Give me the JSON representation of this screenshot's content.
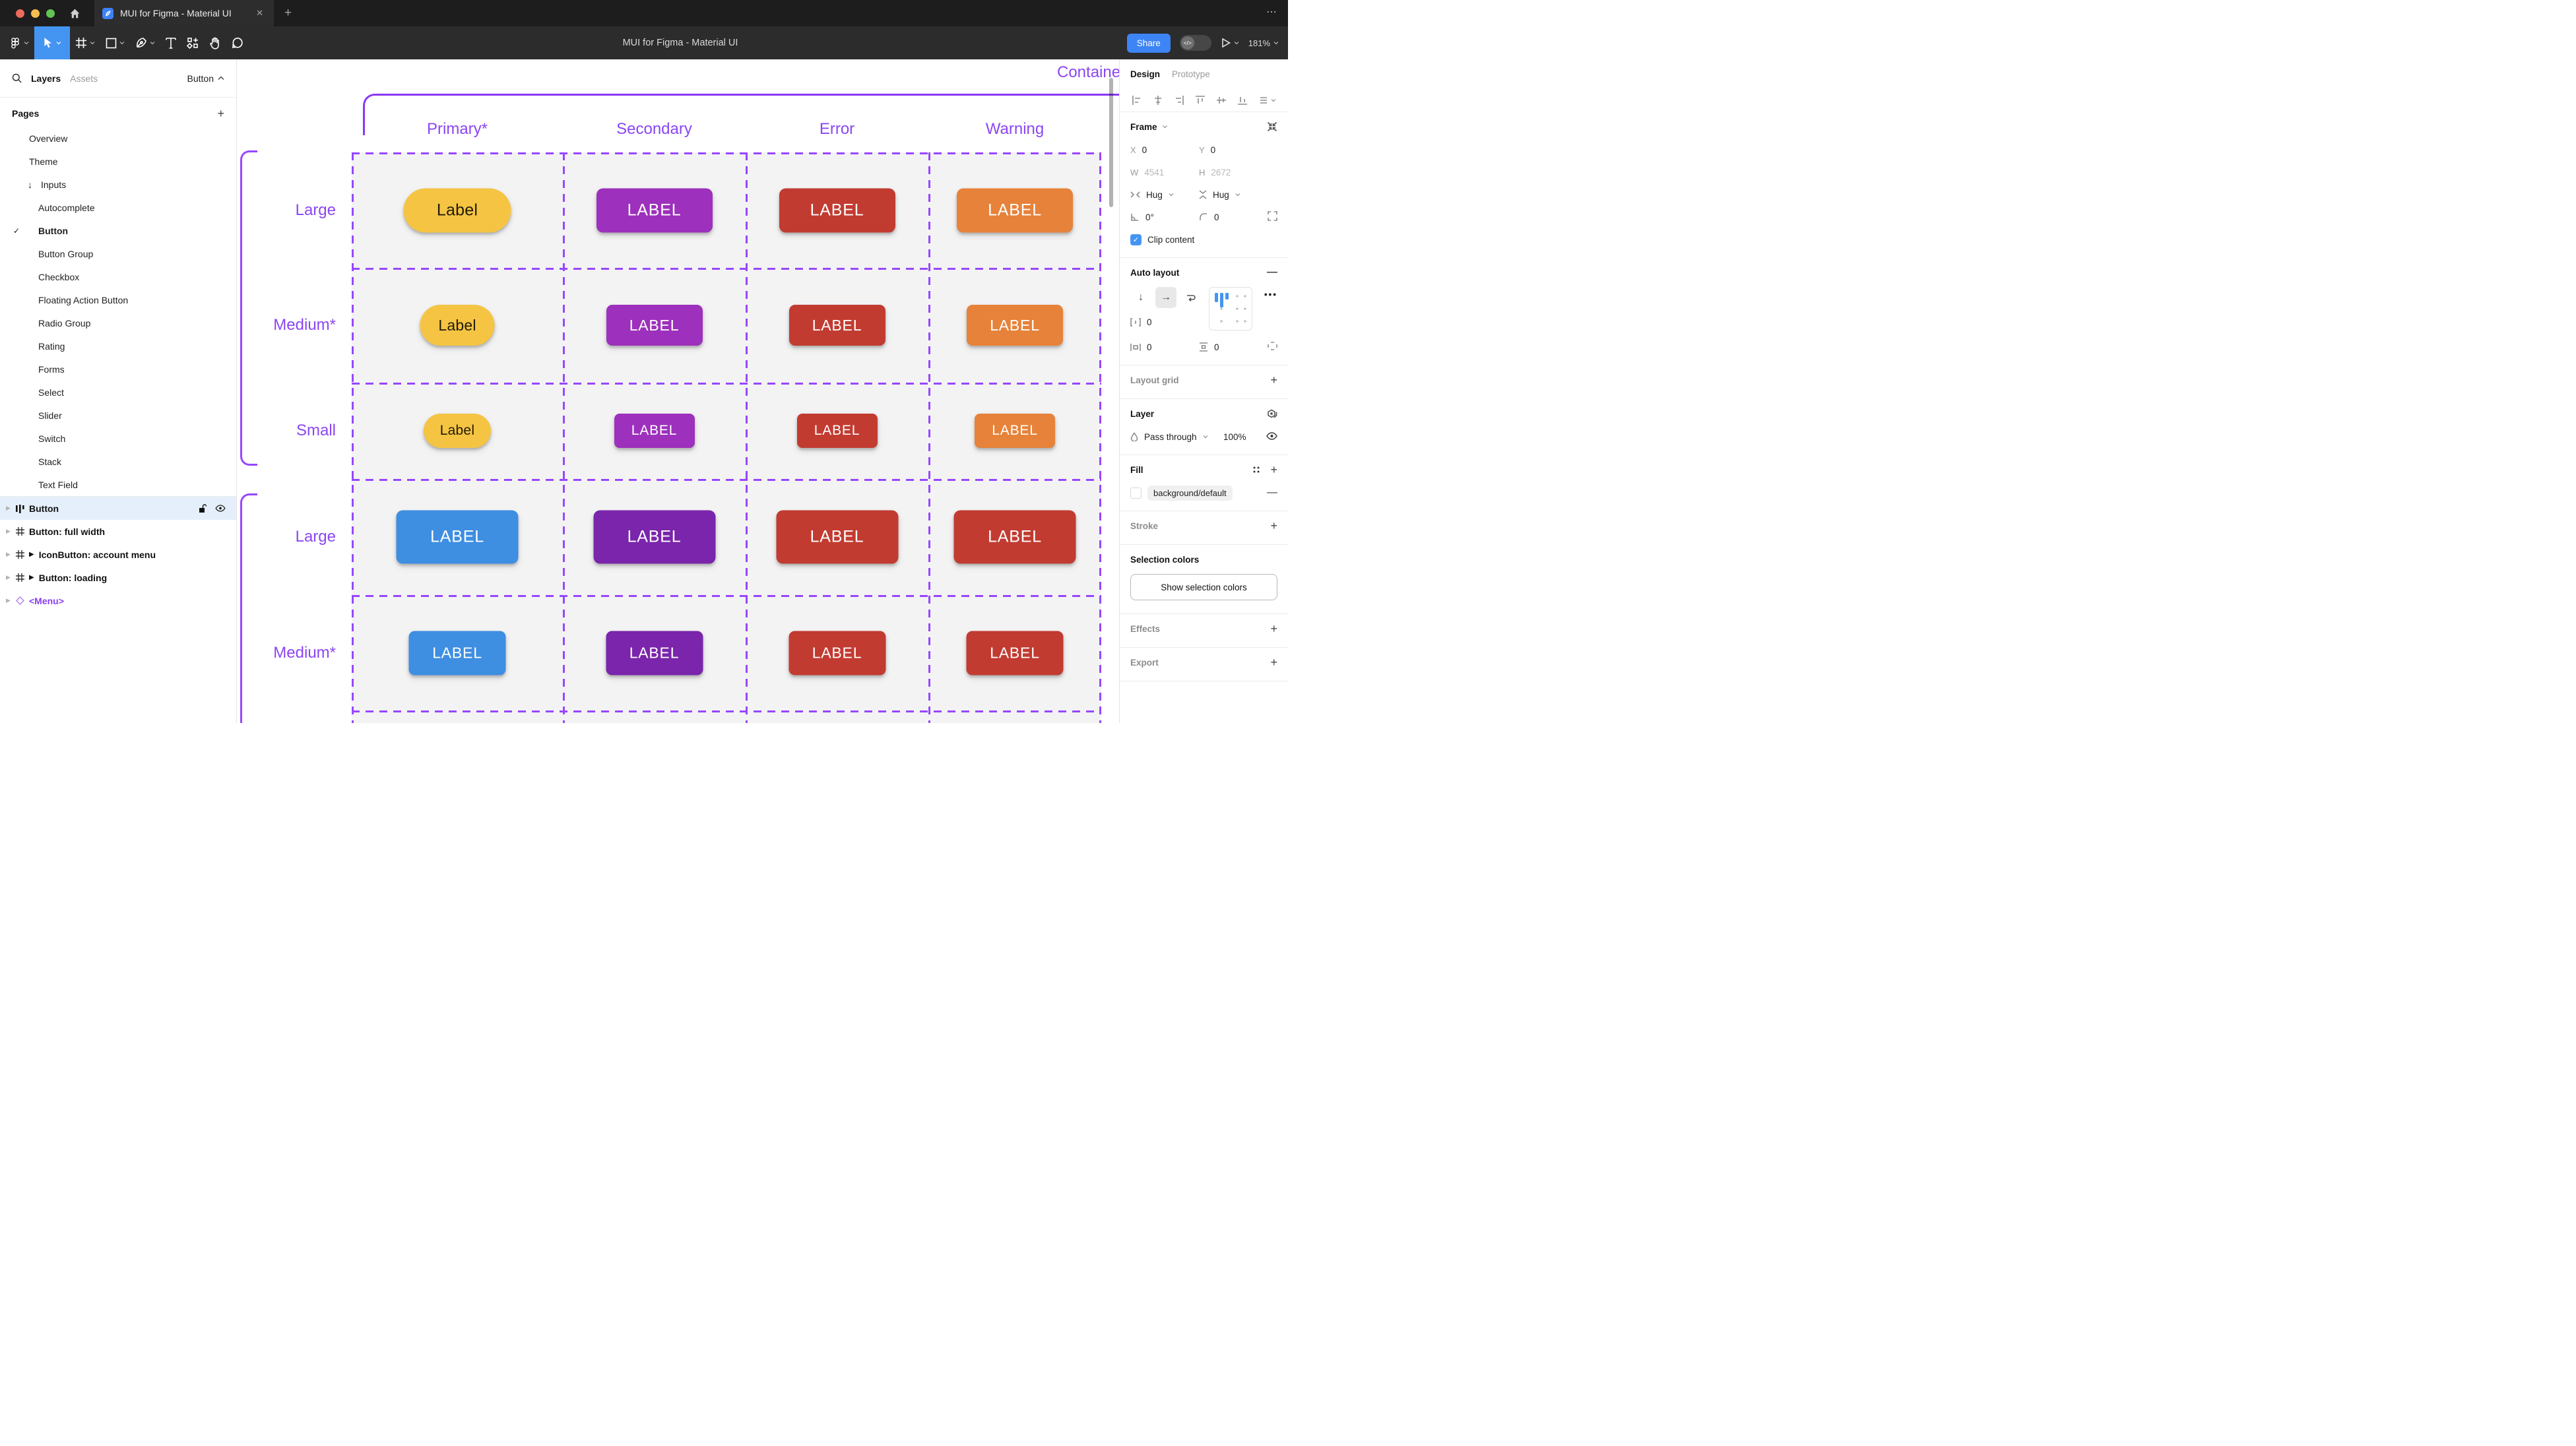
{
  "titlebar": {
    "tab_title": "MUI for Figma - Material UI",
    "overflow_menu": "⋯",
    "new_tab": "+",
    "close_tab": "✕"
  },
  "toolbar": {
    "title": "MUI for Figma - Material UI",
    "share_label": "Share",
    "zoom_level": "181%",
    "dev_toggle_glyph": "</>"
  },
  "sidebar": {
    "tab_layers": "Layers",
    "tab_assets": "Assets",
    "page_selector": "Button",
    "pages_header": "Pages",
    "pages": [
      {
        "label": "Overview"
      },
      {
        "label": "Theme"
      },
      {
        "label": "Inputs",
        "arrow": "↓"
      },
      {
        "label": "Autocomplete",
        "indent": true
      },
      {
        "label": "Button",
        "indent": true,
        "checked": true
      },
      {
        "label": "Button Group",
        "indent": true
      },
      {
        "label": "Checkbox",
        "indent": true
      },
      {
        "label": "Floating Action Button",
        "indent": true
      },
      {
        "label": "Radio Group",
        "indent": true
      },
      {
        "label": "Rating",
        "indent": true
      },
      {
        "label": "Forms",
        "indent": true
      },
      {
        "label": "Select",
        "indent": true
      },
      {
        "label": "Slider",
        "indent": true
      },
      {
        "label": "Switch",
        "indent": true
      },
      {
        "label": "Stack",
        "indent": true
      },
      {
        "label": "Text Field",
        "indent": true
      }
    ],
    "layers": [
      {
        "label": "Button",
        "icon": "autolayout-icon",
        "selected": true
      },
      {
        "label": "Button: full width",
        "icon": "frame-icon"
      },
      {
        "label": "IconButton: account menu",
        "icon": "frame-icon",
        "play": true
      },
      {
        "label": "Button: loading",
        "icon": "frame-icon",
        "play": true
      },
      {
        "label": "<Menu>",
        "icon": "component-icon",
        "purple": true
      }
    ]
  },
  "canvas": {
    "frame_label": "Contained",
    "columns": [
      "Primary*",
      "Secondary",
      "Error",
      "Warning"
    ],
    "palette": {
      "annotation": "#9747FF",
      "frame_border": "#8A38F5",
      "cell_bg": "#F3F3F4",
      "tonal": {
        "bg": "#F5C443",
        "fg": "#211B06"
      },
      "secondary": {
        "bg": "#9D30BC",
        "fg": "#FFFFFF"
      },
      "error": {
        "bg": "#C23B31",
        "fg": "#FFFFFF"
      },
      "warning": {
        "bg": "#E7823A",
        "fg": "#FFFFFF"
      },
      "primary": {
        "bg": "#3E8EE2",
        "fg": "#FFFFFF"
      },
      "secondary_dark": {
        "bg": "#7A25AB",
        "fg": "#FFFFFF"
      }
    },
    "rows": [
      {
        "label": "Large",
        "buttons": [
          {
            "text": "Label",
            "variant": "tonal"
          },
          {
            "text": "LABEL",
            "variant": "secondary"
          },
          {
            "text": "LABEL",
            "variant": "error"
          },
          {
            "text": "LABEL",
            "variant": "warning"
          }
        ]
      },
      {
        "label": "Medium*",
        "buttons": [
          {
            "text": "Label",
            "variant": "tonal"
          },
          {
            "text": "LABEL",
            "variant": "secondary"
          },
          {
            "text": "LABEL",
            "variant": "error"
          },
          {
            "text": "LABEL",
            "variant": "warning"
          }
        ]
      },
      {
        "label": "Small",
        "buttons": [
          {
            "text": "Label",
            "variant": "tonal"
          },
          {
            "text": "LABEL",
            "variant": "secondary"
          },
          {
            "text": "LABEL",
            "variant": "error"
          },
          {
            "text": "LABEL",
            "variant": "warning"
          }
        ]
      },
      {
        "label": "Large",
        "buttons": [
          {
            "text": "LABEL",
            "variant": "primary"
          },
          {
            "text": "LABEL",
            "variant": "secondary_dark"
          },
          {
            "text": "LABEL",
            "variant": "error"
          },
          {
            "text": "LABEL",
            "variant": "error"
          }
        ]
      },
      {
        "label": "Medium*",
        "buttons": [
          {
            "text": "LABEL",
            "variant": "primary"
          },
          {
            "text": "LABEL",
            "variant": "secondary_dark"
          },
          {
            "text": "LABEL",
            "variant": "error"
          },
          {
            "text": "LABEL",
            "variant": "error"
          }
        ]
      }
    ]
  },
  "panel": {
    "tab_design": "Design",
    "tab_prototype": "Prototype",
    "frame": {
      "header": "Frame",
      "x_label": "X",
      "x": "0",
      "y_label": "Y",
      "y": "0",
      "w_label": "W",
      "w": "4541",
      "h_label": "H",
      "h": "2672",
      "hug_h": "Hug",
      "hug_v": "Hug",
      "rotation": "0°",
      "radius": "0",
      "clip": "Clip content"
    },
    "auto_layout": {
      "header": "Auto layout",
      "gap": "0",
      "pad_h": "0",
      "pad_v": "0"
    },
    "layout_grid": {
      "header": "Layout grid"
    },
    "layer": {
      "header": "Layer",
      "blend_mode": "Pass through",
      "opacity": "100%"
    },
    "fill": {
      "header": "Fill",
      "token": "background/default"
    },
    "stroke": {
      "header": "Stroke"
    },
    "selection_colors": {
      "header": "Selection colors",
      "button": "Show selection colors"
    },
    "effects": {
      "header": "Effects"
    },
    "export": {
      "header": "Export"
    }
  }
}
